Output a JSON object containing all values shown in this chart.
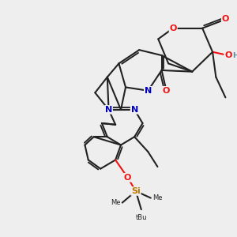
{
  "bg_color": "#eeeeee",
  "bond_color": "#222222",
  "bond_lw": 1.5,
  "dbo": 0.1,
  "atom_colors": {
    "O": "#ee1111",
    "N": "#0000bb",
    "Si": "#bb7700",
    "H": "#5a8a9a",
    "C": "#222222"
  },
  "figsize": [
    3.0,
    3.0
  ],
  "dpi": 100,
  "xlim": [
    -1,
    11
  ],
  "ylim": [
    -0.5,
    11
  ]
}
